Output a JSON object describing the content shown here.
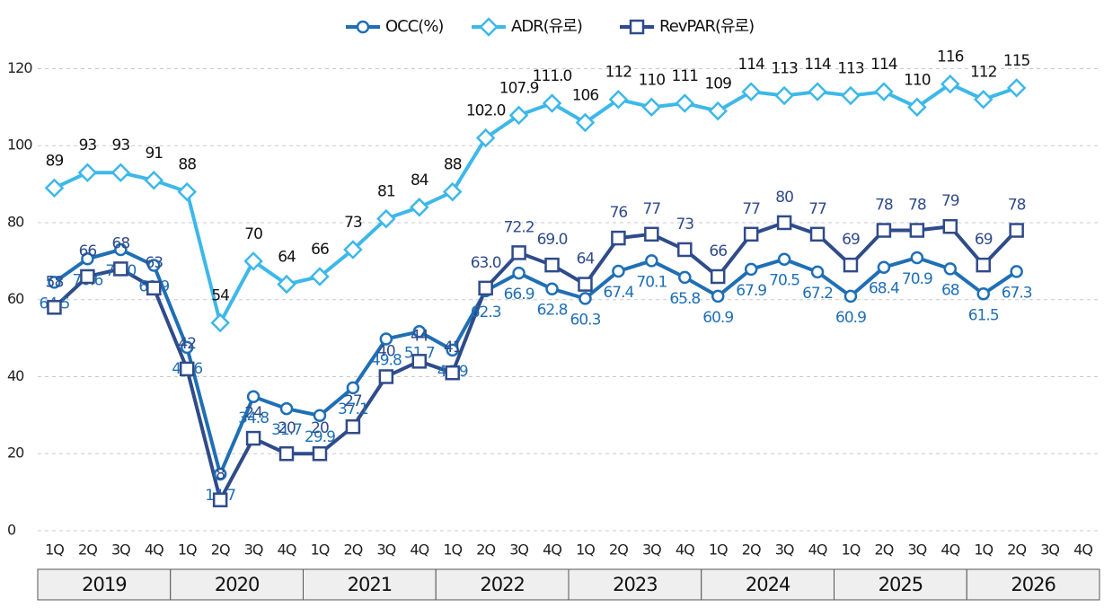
{
  "chart_data": {
    "type": "line",
    "categories": [
      "1Q",
      "2Q",
      "3Q",
      "4Q",
      "1Q",
      "2Q",
      "3Q",
      "4Q",
      "1Q",
      "2Q",
      "3Q",
      "4Q",
      "1Q",
      "2Q",
      "3Q",
      "4Q",
      "1Q",
      "2Q",
      "3Q",
      "4Q",
      "1Q",
      "2Q",
      "3Q",
      "4Q",
      "1Q",
      "2Q",
      "3Q",
      "4Q",
      "1Q",
      "2Q",
      "3Q",
      "4Q"
    ],
    "groups": [
      "2019",
      "2020",
      "2021",
      "2022",
      "2023",
      "2024",
      "2025",
      "2026"
    ],
    "ylim": [
      0,
      125
    ],
    "yticks": [
      0,
      20,
      40,
      60,
      80,
      100,
      120
    ],
    "grid": true,
    "legend": "top",
    "series": [
      {
        "name": "OCC(%)",
        "color": "#1f6fb5",
        "marker": "circle",
        "values": [
          64.5,
          70.6,
          73.0,
          68.9,
          47.6,
          14.7,
          34.8,
          31.7,
          29.9,
          37.1,
          49.8,
          51.7,
          46.9,
          62.3,
          66.9,
          62.8,
          60.3,
          67.4,
          70.1,
          65.8,
          60.9,
          67.9,
          70.5,
          67.2,
          60.9,
          68.4,
          70.9,
          68,
          61.5,
          67.3,
          null,
          null
        ],
        "value_labels": [
          "64.5",
          "70.6",
          "73.0",
          "68.9",
          "47.6",
          "14.7",
          "34.8",
          "31.7",
          "29.9",
          "37.1",
          "49.8",
          "51.7",
          "46.9",
          "62.3",
          "66.9",
          "62.8",
          "60.3",
          "67.4",
          "70.1",
          "65.8",
          "60.9",
          "67.9",
          "70.5",
          "67.2",
          "60.9",
          "68.4",
          "70.9",
          "68",
          "61.5",
          "67.3",
          null,
          null
        ]
      },
      {
        "name": "ADR(유로)",
        "color": "#3db8e8",
        "marker": "diamond",
        "values": [
          89,
          93,
          93,
          91,
          88,
          54,
          70,
          64,
          66,
          73,
          81,
          84,
          88,
          102.0,
          107.9,
          111.0,
          106,
          112,
          110,
          111,
          109,
          114,
          113,
          114,
          113,
          114,
          110,
          116,
          112,
          115,
          null,
          null
        ],
        "value_labels": [
          "89",
          "93",
          "93",
          "91",
          "88",
          "54",
          "70",
          "64",
          "66",
          "73",
          "81",
          "84",
          "88",
          "102.0",
          "107.9",
          "111.0",
          "106",
          "112",
          "110",
          "111",
          "109",
          "114",
          "113",
          "114",
          "113",
          "114",
          "110",
          "116",
          "112",
          "115",
          null,
          null
        ]
      },
      {
        "name": "RevPAR(유로)",
        "color": "#2f4b8a",
        "marker": "square",
        "values": [
          58,
          66,
          68,
          63,
          42,
          8,
          24,
          20,
          20,
          27,
          40,
          44,
          41,
          63.0,
          72.2,
          69.0,
          64,
          76,
          77,
          73,
          66,
          77,
          80,
          77,
          69,
          78,
          78,
          79,
          69,
          78,
          null,
          null
        ],
        "value_labels": [
          "58",
          "66",
          "68",
          "63",
          "42",
          "8",
          "24",
          "20",
          "20",
          "27",
          "40",
          "44",
          "41",
          "63.0",
          "72.2",
          "69.0",
          "64",
          "76",
          "77",
          "73",
          "66",
          "77",
          "80",
          "77",
          "69",
          "78",
          "78",
          "79",
          "69",
          "78",
          null,
          null
        ]
      }
    ]
  }
}
